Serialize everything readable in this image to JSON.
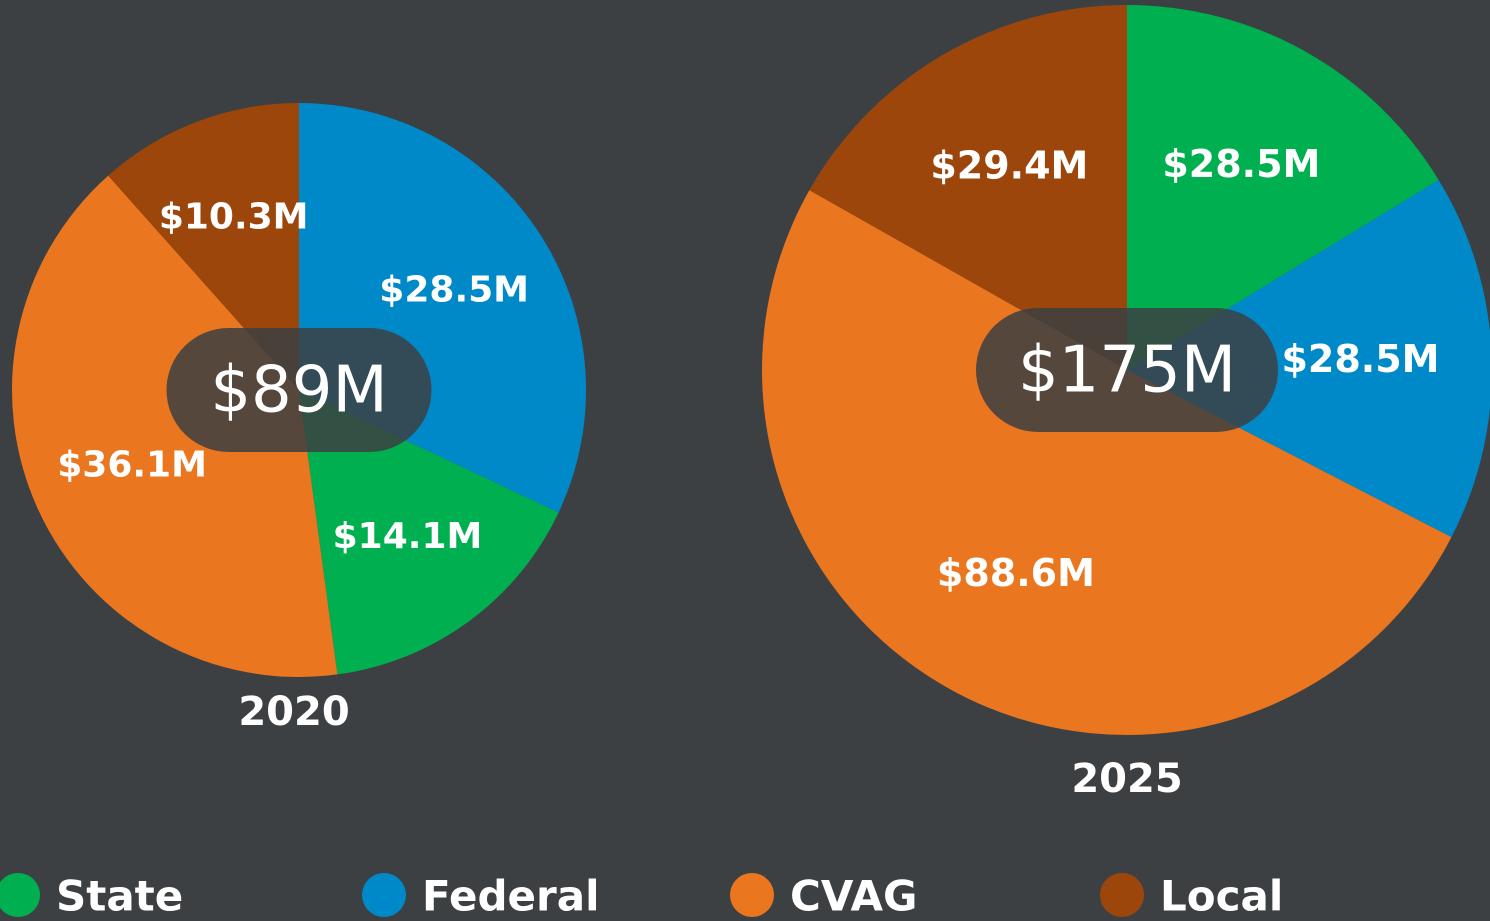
{
  "chart_data": [
    {
      "type": "pie",
      "title": "2020",
      "center_label": "$89M",
      "values": [
        28.5,
        14.1,
        36.1,
        10.3
      ],
      "value_labels": [
        "$28.5M",
        "$14.1M",
        "$36.1M",
        "$10.3M"
      ],
      "colors": [
        "#0089c8",
        "#00b050",
        "#ea761f",
        "#9c460c"
      ]
    },
    {
      "type": "pie",
      "title": "2025",
      "center_label": "$175M",
      "values": [
        28.5,
        28.5,
        88.6,
        29.4
      ],
      "value_labels": [
        "$28.5M",
        "$28.5M",
        "$88.6M",
        "$29.4M"
      ],
      "colors": [
        "#00b050",
        "#0089c8",
        "#ea761f",
        "#9c460c"
      ]
    }
  ],
  "legend": [
    {
      "name": "State",
      "color": "#00b050"
    },
    {
      "name": "Federal",
      "color": "#0089c8"
    },
    {
      "name": "CVAG",
      "color": "#ea761f"
    },
    {
      "name": "Local",
      "color": "#9c460c"
    }
  ]
}
